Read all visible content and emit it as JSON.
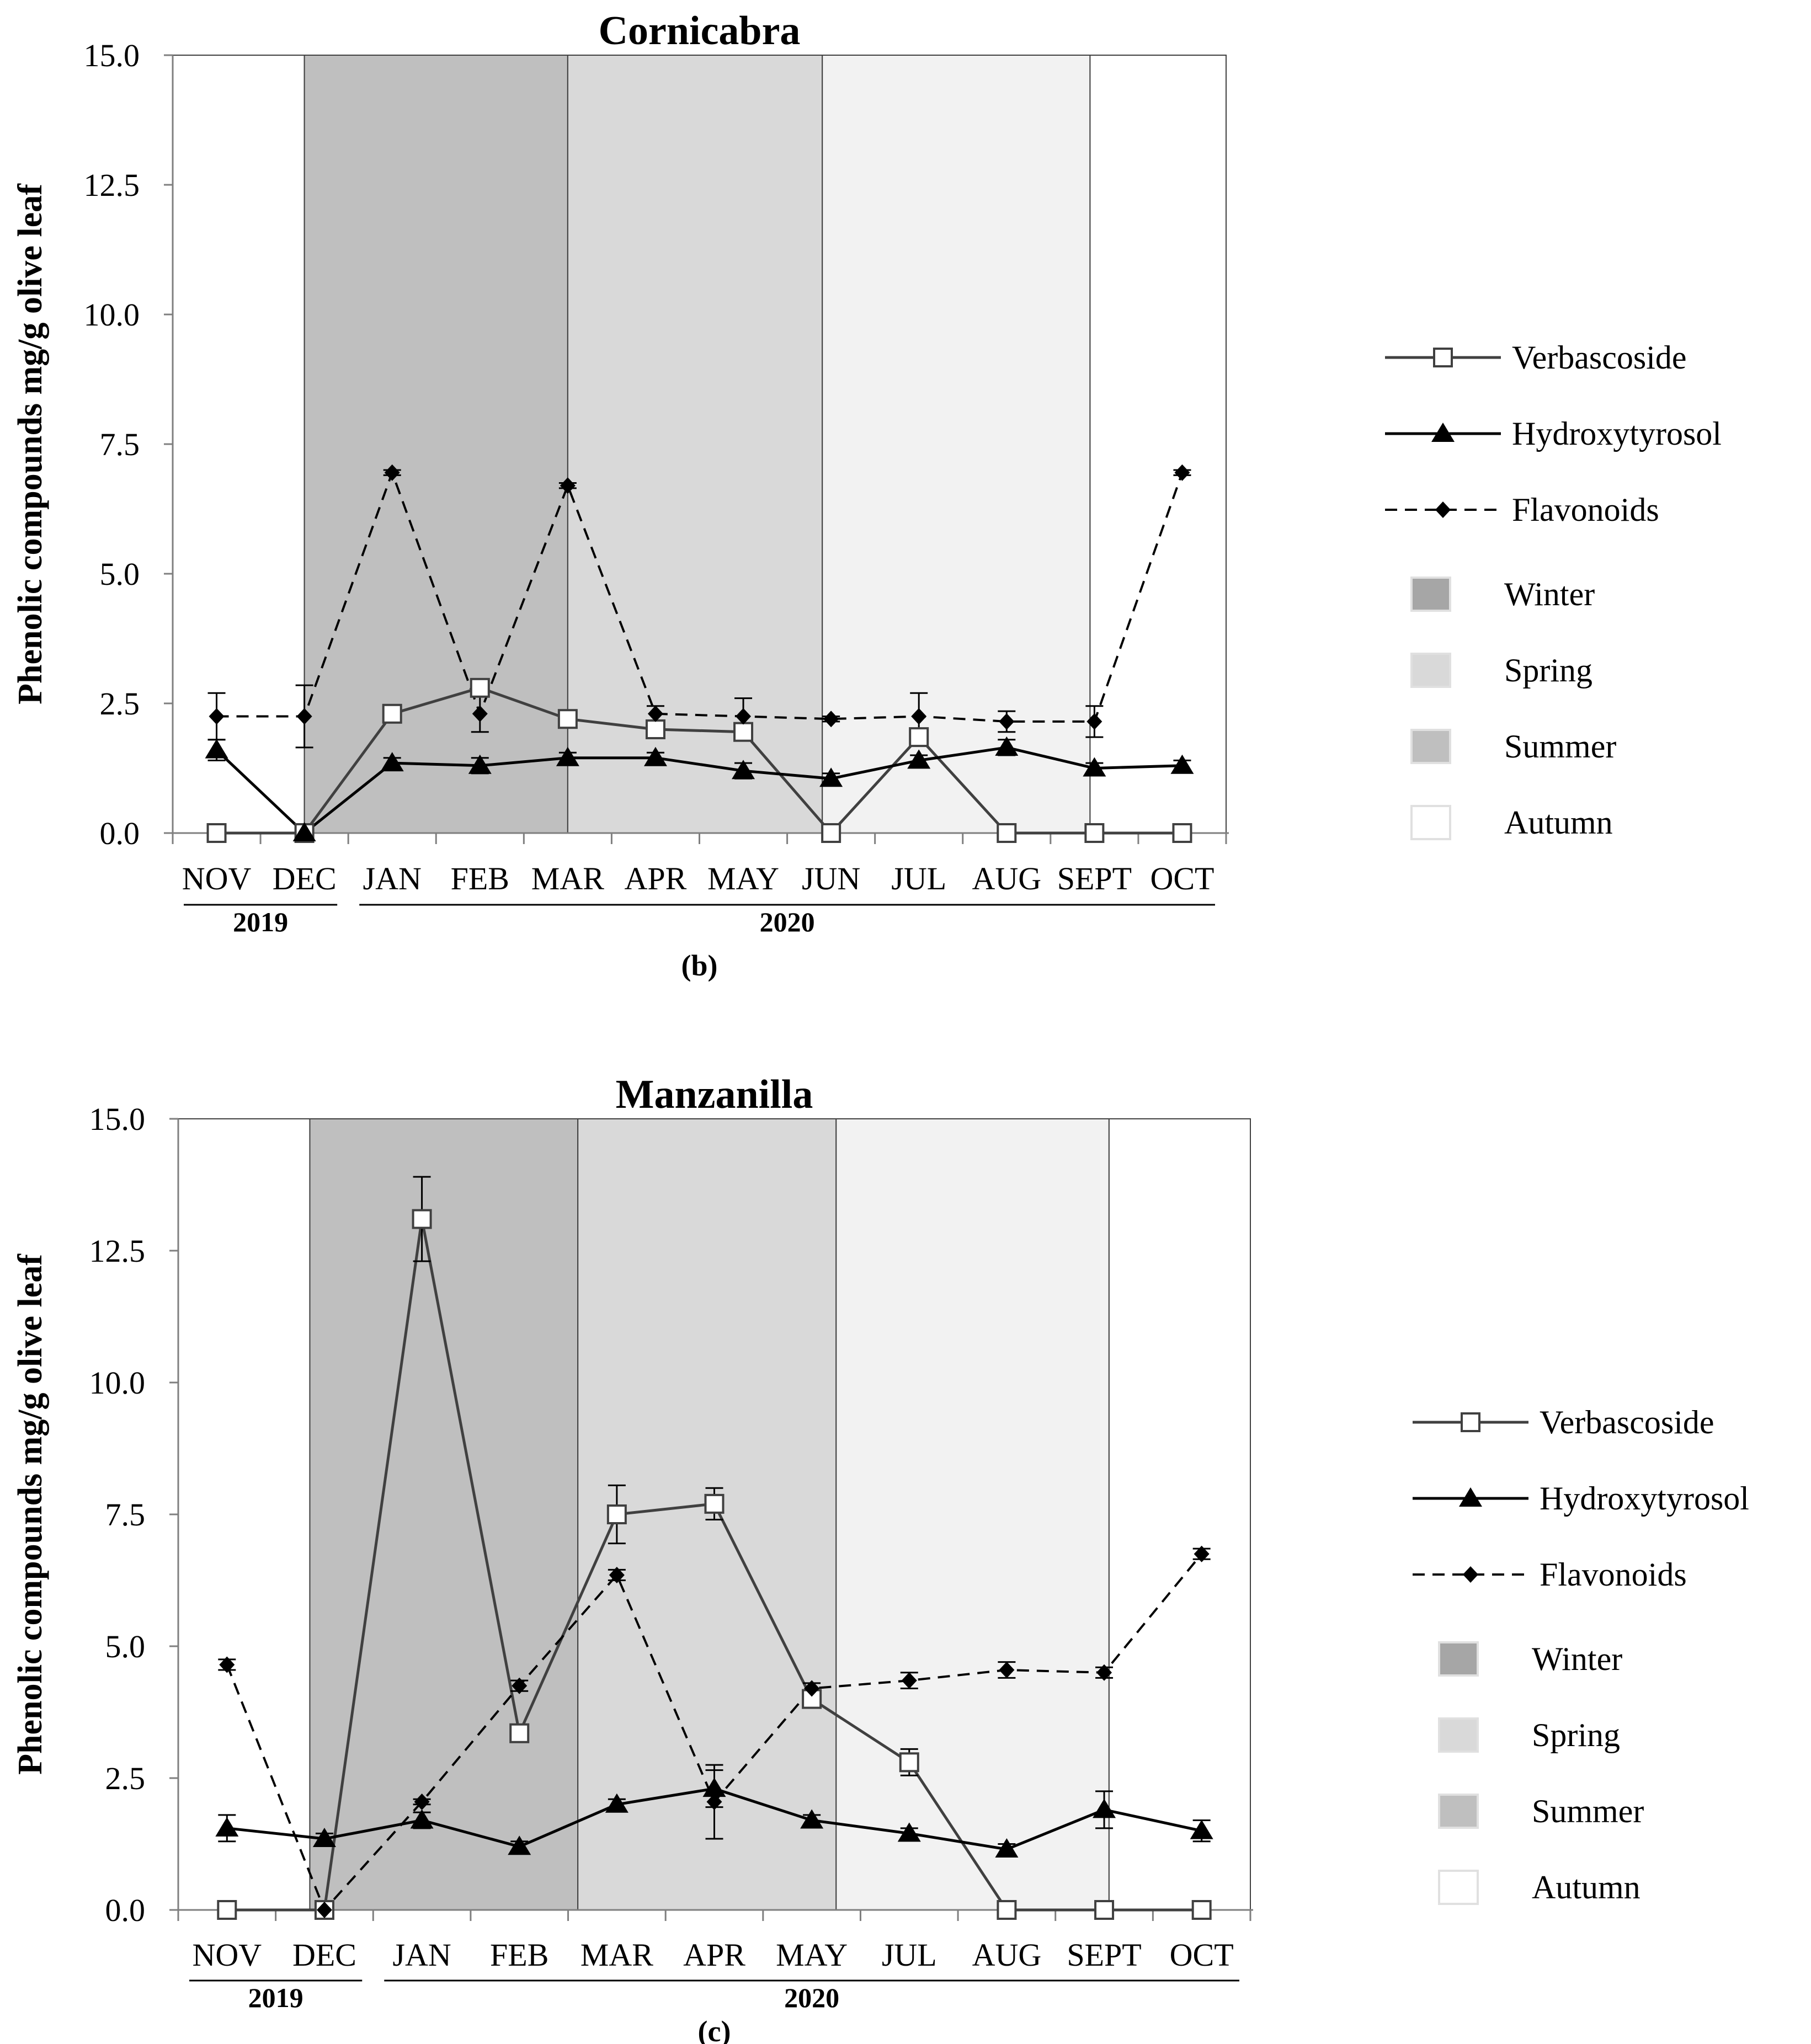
{
  "chart_data": [
    {
      "type": "line",
      "panel_label": "(b)",
      "title": "Cornicabra",
      "ylabel": "Phenolic compounds mg/g olive leaf",
      "ylim": [
        0,
        15
      ],
      "yticks": [
        "0.0",
        "2.5",
        "5.0",
        "7.5",
        "10.0",
        "12.5",
        "15.0"
      ],
      "categories": [
        "NOV",
        "DEC",
        "JAN",
        "FEB",
        "MAR",
        "APR",
        "MAY",
        "JUN",
        "JUL",
        "AUG",
        "SEPT",
        "OCT"
      ],
      "years": [
        {
          "label": "2019",
          "from": 0,
          "to": 1
        },
        {
          "label": "2020",
          "from": 2,
          "to": 11
        }
      ],
      "seasons": [
        {
          "name": "Autumn",
          "from": -0.5,
          "to": 1.0,
          "color": "#ffffff"
        },
        {
          "name": "Winter",
          "from": 1.0,
          "to": 4.0,
          "color": "#bfbfbf"
        },
        {
          "name": "Spring",
          "from": 4.0,
          "to": 6.9,
          "color": "#d9d9d9"
        },
        {
          "name": "Summer",
          "from": 6.9,
          "to": 9.95,
          "color": "#f2f2f2"
        },
        {
          "name": "Autumn",
          "from": 9.95,
          "to": 11.5,
          "color": "#ffffff"
        }
      ],
      "series": [
        {
          "name": "Verbascoside",
          "marker": "square",
          "dash": false,
          "line_color": "#404040",
          "values": [
            0.0,
            0.0,
            2.3,
            2.8,
            2.2,
            2.0,
            1.95,
            0.0,
            1.85,
            0.0,
            0.0,
            0.0
          ],
          "errors": [
            0,
            0,
            0,
            0.15,
            0.15,
            0,
            0,
            0,
            0.1,
            0,
            0,
            0
          ]
        },
        {
          "name": "Hydroxytyrosol",
          "marker": "triangle",
          "dash": false,
          "line_color": "#000000",
          "values": [
            1.6,
            0.0,
            1.35,
            1.3,
            1.45,
            1.45,
            1.2,
            1.05,
            1.4,
            1.65,
            1.25,
            1.3
          ],
          "errors": [
            0.2,
            0,
            0.1,
            0.15,
            0.1,
            0.1,
            0.15,
            0.1,
            0.1,
            0.15,
            0.1,
            0.1
          ]
        },
        {
          "name": "Flavonoids",
          "marker": "diamond",
          "dash": true,
          "line_color": "#000000",
          "values": [
            2.25,
            2.25,
            6.95,
            2.3,
            6.7,
            2.3,
            2.25,
            2.2,
            2.25,
            2.15,
            2.15,
            6.95
          ],
          "errors": [
            0.45,
            0.6,
            0.05,
            0.35,
            0.05,
            0.15,
            0.35,
            0.05,
            0.45,
            0.2,
            0.3,
            0.05
          ]
        }
      ],
      "legend": {
        "position": "right",
        "series": [
          "Verbascoside",
          "Hydroxytyrosol",
          "Flavonoids"
        ],
        "seasons": [
          {
            "name": "Winter",
            "color": "#a6a6a6"
          },
          {
            "name": "Spring",
            "color": "#d9d9d9"
          },
          {
            "name": "Summer",
            "color": "#bfbfbf"
          },
          {
            "name": "Autumn",
            "color": "#ffffff"
          }
        ]
      }
    },
    {
      "type": "line",
      "panel_label": "(c)",
      "title": "Manzanilla",
      "ylabel": "Phenolic compounds mg/g olive leaf",
      "ylim": [
        0,
        15
      ],
      "yticks": [
        "0.0",
        "2.5",
        "5.0",
        "7.5",
        "10.0",
        "12.5",
        "15.0"
      ],
      "categories": [
        "NOV",
        "DEC",
        "JAN",
        "FEB",
        "MAR",
        "APR",
        "MAY",
        "JUL",
        "AUG",
        "SEPT",
        "OCT"
      ],
      "years": [
        {
          "label": "2019",
          "from": 0,
          "to": 1
        },
        {
          "label": "2020",
          "from": 2,
          "to": 10
        }
      ],
      "seasons": [
        {
          "name": "Autumn",
          "from": -0.5,
          "to": 0.85,
          "color": "#ffffff"
        },
        {
          "name": "Winter",
          "from": 0.85,
          "to": 3.6,
          "color": "#bfbfbf"
        },
        {
          "name": "Spring",
          "from": 3.6,
          "to": 6.25,
          "color": "#d9d9d9"
        },
        {
          "name": "Summer",
          "from": 6.25,
          "to": 9.05,
          "color": "#f2f2f2"
        },
        {
          "name": "Autumn",
          "from": 9.05,
          "to": 10.5,
          "color": "#ffffff"
        }
      ],
      "series": [
        {
          "name": "Verbascoside",
          "marker": "square",
          "dash": false,
          "line_color": "#404040",
          "values": [
            0.0,
            0.0,
            13.1,
            3.35,
            7.5,
            7.7,
            4.0,
            2.8,
            0.0,
            0.0,
            0.0
          ],
          "errors": [
            0,
            0,
            0.8,
            0.1,
            0.55,
            0.3,
            0.15,
            0.25,
            0,
            0,
            0
          ]
        },
        {
          "name": "Hydroxytyrosol",
          "marker": "triangle",
          "dash": false,
          "line_color": "#000000",
          "values": [
            1.55,
            1.35,
            1.7,
            1.2,
            2.0,
            2.3,
            1.7,
            1.45,
            1.15,
            1.9,
            1.5
          ],
          "errors": [
            0.25,
            0.1,
            0.15,
            0.1,
            0.1,
            0.35,
            0.1,
            0.1,
            0.1,
            0.35,
            0.2
          ]
        },
        {
          "name": "Flavonoids",
          "marker": "diamond",
          "dash": true,
          "line_color": "#000000",
          "values": [
            4.65,
            0.0,
            2.05,
            4.25,
            6.35,
            2.05,
            4.2,
            4.35,
            4.55,
            4.5,
            6.75
          ],
          "errors": [
            0.1,
            0,
            0.05,
            0.1,
            0.1,
            0.7,
            0.1,
            0.15,
            0.15,
            0.1,
            0.1
          ]
        }
      ],
      "legend": {
        "position": "right",
        "series": [
          "Verbascoside",
          "Hydroxytyrosol",
          "Flavonoids"
        ],
        "seasons": [
          {
            "name": "Winter",
            "color": "#a6a6a6"
          },
          {
            "name": "Spring",
            "color": "#d9d9d9"
          },
          {
            "name": "Summer",
            "color": "#bfbfbf"
          },
          {
            "name": "Autumn",
            "color": "#ffffff"
          }
        ]
      }
    }
  ]
}
